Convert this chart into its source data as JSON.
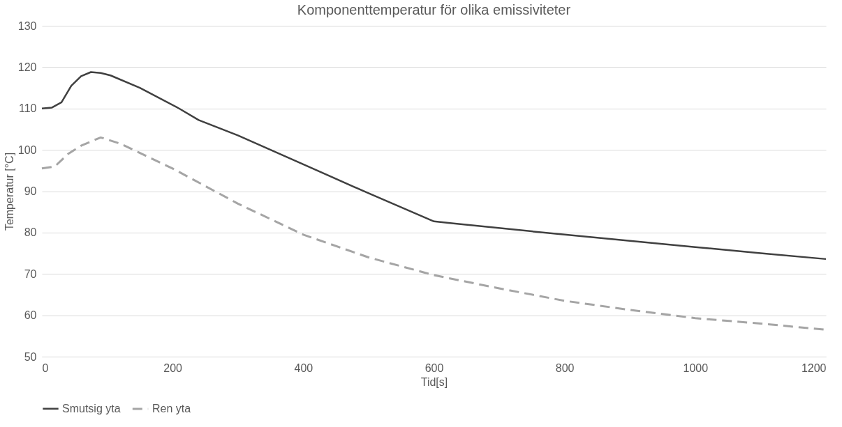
{
  "chart_data": {
    "type": "line",
    "title": "Komponenttemperatur för olika emissiviteter",
    "xlabel": "Tid[s]",
    "ylabel": "Temperatur [°C]",
    "xlim": [
      0,
      1200
    ],
    "xticks": [
      0,
      200,
      400,
      600,
      800,
      1000,
      1200
    ],
    "ylim": [
      50,
      130
    ],
    "yticks": [
      50,
      60,
      70,
      80,
      90,
      100,
      110,
      120,
      130
    ],
    "grid": "y",
    "legend": "bottom",
    "marker": "none",
    "series": [
      {
        "name": "Smutsig yta",
        "color": "#404040",
        "line_style": "solid",
        "x": [
          0,
          15,
          30,
          45,
          60,
          75,
          90,
          105,
          150,
          210,
          240,
          300,
          400,
          500,
          600,
          630,
          800,
          900,
          1000,
          1100,
          1200
        ],
        "values": [
          110,
          110.2,
          111.5,
          115.5,
          117.8,
          118.8,
          118.6,
          118,
          115,
          110,
          107.2,
          103.5,
          96.5,
          89.5,
          82.7,
          82.2,
          79.5,
          78,
          76.5,
          75,
          73.6
        ]
      },
      {
        "name": "Ren yta",
        "color": "#a5a5a5",
        "line_style": "dashed",
        "x": [
          0,
          20,
          40,
          60,
          90,
          120,
          200,
          300,
          400,
          500,
          600,
          700,
          800,
          900,
          1000,
          1100,
          1200
        ],
        "values": [
          95.5,
          96,
          99,
          101,
          103,
          101.5,
          95.5,
          87,
          79.5,
          74,
          69.7,
          66.5,
          63.5,
          61.3,
          59.3,
          58,
          56.5
        ]
      }
    ]
  }
}
